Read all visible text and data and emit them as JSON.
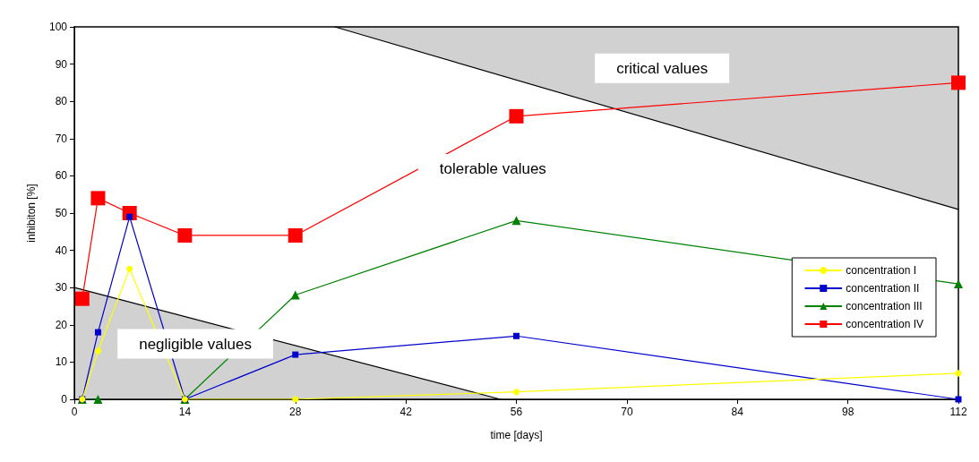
{
  "chart_data": {
    "type": "line",
    "xlabel": "time [days]",
    "ylabel": "inhibiton [%]",
    "xlim": [
      0,
      112
    ],
    "xticks": [
      0,
      14,
      28,
      42,
      56,
      70,
      84,
      98,
      112
    ],
    "ylim": [
      0,
      100
    ],
    "yticks": [
      0,
      10,
      20,
      30,
      40,
      50,
      60,
      70,
      80,
      90,
      100
    ],
    "grid": false,
    "legend": "right",
    "annotations": [
      "critical values",
      "tolerable values",
      "negligible values"
    ],
    "series": [
      {
        "type": "area",
        "color": "#000000",
        "x": [
          0,
          54
        ],
        "values": [
          30,
          0
        ]
      },
      {
        "type": "area",
        "color": "#000000",
        "x": [
          33,
          112
        ],
        "values": [
          100,
          51
        ]
      },
      {
        "name": "concentration I",
        "color": "#ffff00",
        "marker": "circle",
        "x": [
          1,
          3,
          7,
          14,
          28,
          56,
          112
        ],
        "values": [
          0,
          13,
          35,
          0,
          0,
          2,
          7
        ]
      },
      {
        "name": "concentration II",
        "color": "#0000cc",
        "marker": "square",
        "x": [
          1,
          3,
          7,
          14,
          28,
          56,
          112
        ],
        "values": [
          0,
          18,
          49,
          0,
          12,
          17,
          0
        ]
      },
      {
        "name": "concentration III",
        "color": "#008000",
        "marker": "triangle",
        "x": [
          1,
          3,
          7,
          14,
          28,
          56,
          112
        ],
        "values": [
          0,
          0,
          null,
          0,
          28,
          48,
          31
        ]
      },
      {
        "name": "concentration IV",
        "color": "#ff0000",
        "marker": "square",
        "x": [
          1,
          3,
          7,
          14,
          28,
          56,
          112
        ],
        "values": [
          27,
          54,
          50,
          44,
          44,
          76,
          85
        ]
      }
    ]
  }
}
